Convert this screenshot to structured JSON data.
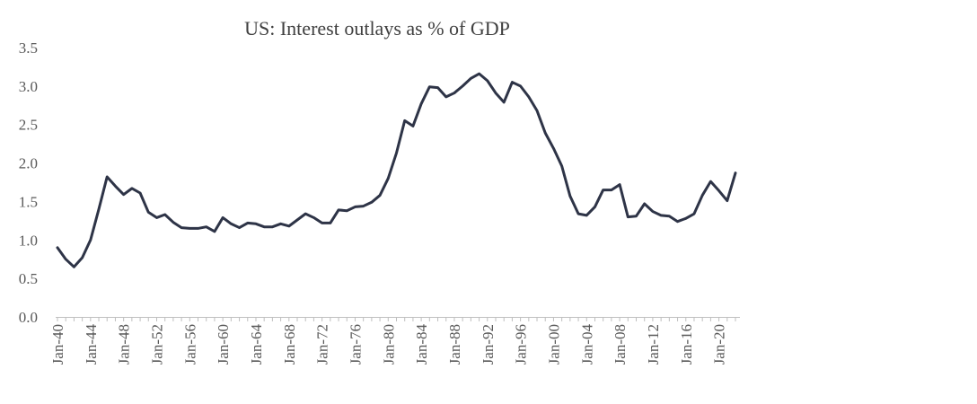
{
  "chart_data": {
    "type": "line",
    "title": "US: Interest outlays as % of GDP",
    "xlabel": "",
    "ylabel": "",
    "ylim": [
      0,
      3.5
    ],
    "yticks": [
      "0.0",
      "0.5",
      "1.0",
      "1.5",
      "2.0",
      "2.5",
      "3.0",
      "3.5"
    ],
    "x_tick_labels": [
      "Jan-40",
      "Jan-44",
      "Jan-48",
      "Jan-52",
      "Jan-56",
      "Jan-60",
      "Jan-64",
      "Jan-68",
      "Jan-72",
      "Jan-76",
      "Jan-80",
      "Jan-84",
      "Jan-88",
      "Jan-92",
      "Jan-96",
      "Jan-00",
      "Jan-04",
      "Jan-08",
      "Jan-12",
      "Jan-16",
      "Jan-20"
    ],
    "grid": false,
    "legend": "none",
    "line_color": "#2e3447",
    "series": [
      {
        "x": [
          1940,
          1941,
          1942,
          1943,
          1944,
          1945,
          1946,
          1947,
          1948,
          1949,
          1950,
          1951,
          1952,
          1953,
          1954,
          1955,
          1956,
          1957,
          1958,
          1959,
          1960,
          1961,
          1962,
          1963,
          1964,
          1965,
          1966,
          1967,
          1968,
          1969,
          1970,
          1971,
          1972,
          1973,
          1974,
          1975,
          1976,
          1977,
          1978,
          1979,
          1980,
          1981,
          1982,
          1983,
          1984,
          1985,
          1986,
          1987,
          1988,
          1989,
          1990,
          1991,
          1992,
          1993,
          1994,
          1995,
          1996,
          1997,
          1998,
          1999,
          2000,
          2001,
          2002,
          2003,
          2004,
          2005,
          2006,
          2007,
          2008,
          2009,
          2010,
          2011,
          2012,
          2013,
          2014,
          2015,
          2016,
          2017,
          2018,
          2019,
          2020,
          2021,
          2022
        ],
        "values": [
          0.9,
          0.75,
          0.65,
          0.77,
          1.0,
          1.4,
          1.82,
          1.7,
          1.59,
          1.67,
          1.61,
          1.36,
          1.29,
          1.33,
          1.23,
          1.16,
          1.15,
          1.15,
          1.17,
          1.11,
          1.29,
          1.21,
          1.16,
          1.22,
          1.21,
          1.17,
          1.17,
          1.21,
          1.18,
          1.26,
          1.34,
          1.29,
          1.22,
          1.22,
          1.39,
          1.38,
          1.43,
          1.44,
          1.49,
          1.58,
          1.8,
          2.13,
          2.55,
          2.48,
          2.77,
          2.99,
          2.98,
          2.86,
          2.91,
          3.0,
          3.1,
          3.16,
          3.07,
          2.91,
          2.79,
          3.05,
          3.0,
          2.86,
          2.68,
          2.39,
          2.19,
          1.96,
          1.57,
          1.34,
          1.32,
          1.43,
          1.65,
          1.65,
          1.72,
          1.3,
          1.31,
          1.47,
          1.37,
          1.32,
          1.31,
          1.24,
          1.28,
          1.34,
          1.58,
          1.76,
          1.64,
          1.51,
          1.87
        ]
      }
    ]
  }
}
